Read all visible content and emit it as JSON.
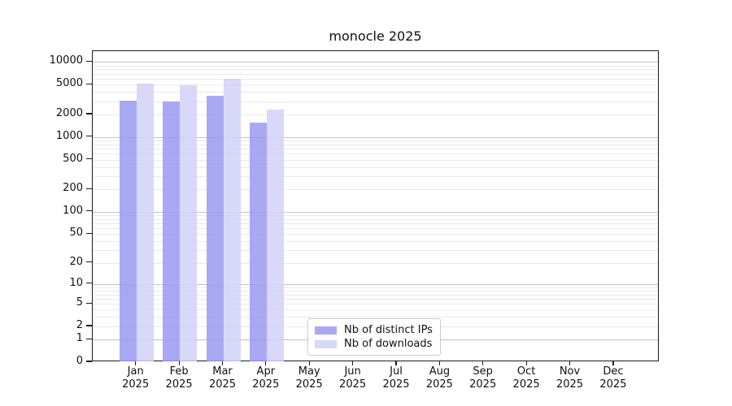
{
  "figure": {
    "title": "monocle 2025"
  },
  "chart_data": {
    "type": "bar",
    "title": "monocle 2025",
    "x_categories": [
      "Jan",
      "Feb",
      "Mar",
      "Apr",
      "May",
      "Jun",
      "Jul",
      "Aug",
      "Sep",
      "Oct",
      "Nov",
      "Dec"
    ],
    "x_year": "2025",
    "y_ticks": [
      0,
      1,
      2,
      5,
      10,
      20,
      50,
      100,
      200,
      500,
      1000,
      2000,
      5000,
      10000
    ],
    "y_scale": "log10(value+1), 0 at baseline",
    "ylim": [
      0,
      14300
    ],
    "grid": {
      "orientation": "horizontal",
      "major_at": [
        1,
        10,
        100,
        1000,
        10000
      ],
      "minor": "2-9 per decade",
      "major_color": "#c3c3c3",
      "minor_color": "#e9e9e9"
    },
    "series": [
      {
        "name": "Nb of distinct IPs",
        "color": "#9a9af1",
        "opacity": 0.85,
        "values": [
          3050,
          2980,
          3570,
          1570,
          null,
          null,
          null,
          null,
          null,
          null,
          null,
          null
        ]
      },
      {
        "name": "Nb of downloads",
        "color": "#d1d1f7",
        "opacity": 0.85,
        "values": [
          5150,
          4900,
          5980,
          2340,
          null,
          null,
          null,
          null,
          null,
          null,
          null,
          null
        ]
      }
    ],
    "legend_position": "inside lower-center-left"
  }
}
